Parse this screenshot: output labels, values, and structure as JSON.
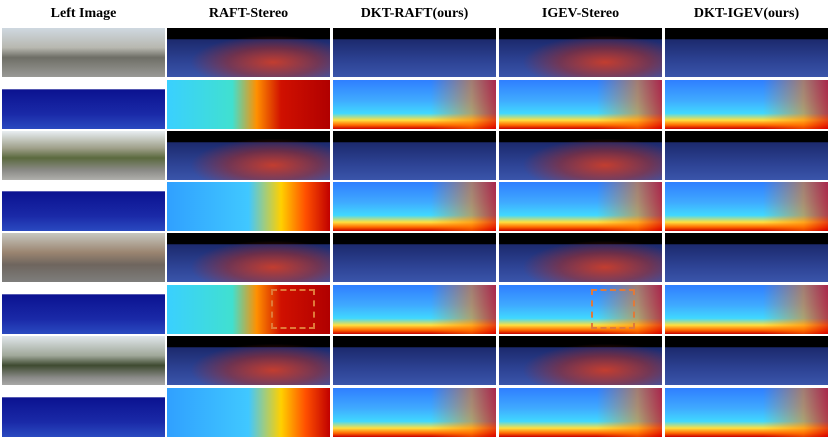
{
  "header": {
    "columns": [
      "Left Image",
      "RAFT-Stereo",
      "DKT-RAFT(ours)",
      "IGEV-Stereo",
      "DKT-IGEV(ours)"
    ]
  }
}
